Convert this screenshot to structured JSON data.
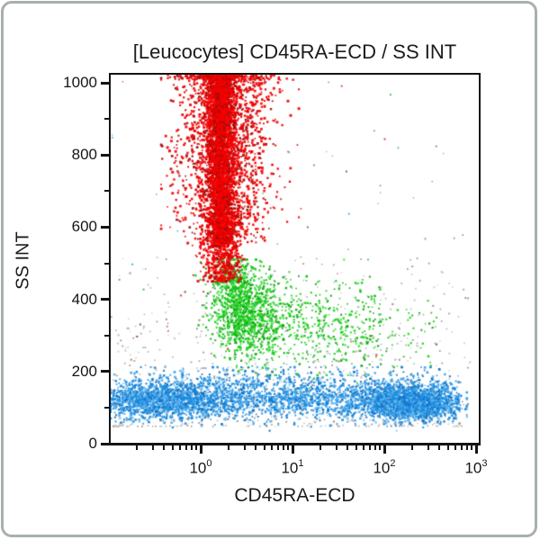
{
  "chart_data": {
    "type": "scatter",
    "title": "[Leucocytes] CD45RA-ECD / SS INT",
    "xlabel": "CD45RA-ECD",
    "ylabel": "SS INT",
    "x_scale": "log",
    "x_log_range": [
      -1,
      3.01
    ],
    "x_tick_base": "10",
    "x_tick_exponents": [
      0,
      1,
      2,
      3
    ],
    "x_minor_decades": [
      -1,
      0,
      1,
      2
    ],
    "y_range": [
      0,
      1022
    ],
    "y_ticks": [
      0,
      200,
      400,
      600,
      800,
      1000
    ],
    "y_minor_ticks": [
      100,
      300,
      500,
      700,
      900
    ],
    "grid": false,
    "legend": false,
    "frame_color": "#141414",
    "background": "#ffffff",
    "populations": [
      {
        "name": "background-debris",
        "color": "#bcc3c7",
        "count": 760,
        "size": [
          1.2,
          2.2
        ],
        "shades": [
          "#bcc3c7",
          "#aeb6ba",
          "#c9ced1",
          "#a08a7e"
        ],
        "x_clip": [
          -1,
          2.94
        ],
        "y_clip": [
          40,
          540
        ],
        "parts": [
          {
            "weight": 0.62,
            "x": {
              "dist": "uniform",
              "min": -1,
              "max": 2.92
            },
            "y": {
              "dist": "uniform",
              "min": 48,
              "max": 330,
              "pow": 2.2
            }
          },
          {
            "weight": 0.38,
            "x": {
              "dist": "uniform",
              "min": -1,
              "max": 2.92
            },
            "y": {
              "dist": "uniform",
              "min": 140,
              "max": 520,
              "pow": 1.6
            }
          }
        ]
      },
      {
        "name": "strays",
        "color": "#888f93",
        "count": 90,
        "size": [
          1.2,
          2.2
        ],
        "shades": [
          "#e03030",
          "#2bb52b",
          "#4aa5df",
          "#9aa1a5",
          "#7c5a4e"
        ],
        "x_clip": [
          -1,
          2.92
        ],
        "y_clip": [
          45,
          1010
        ],
        "parts": [
          {
            "weight": 1,
            "x": {
              "dist": "uniform",
              "min": -1,
              "max": 2.9
            },
            "y": {
              "dist": "uniform",
              "min": 60,
              "max": 1005
            }
          }
        ]
      },
      {
        "name": "green-cluster",
        "color": "#12c912",
        "count": 1800,
        "size": [
          1.5,
          2.6
        ],
        "shades": [
          "#12c912",
          "#15d415",
          "#0da30d",
          "#3fd63f"
        ],
        "x_clip": [
          -0.6,
          2.7
        ],
        "y_clip": [
          190,
          510
        ],
        "parts": [
          {
            "weight": 0.48,
            "x": {
              "dist": "normal",
              "mean": 0.45,
              "sd": 0.18
            },
            "y": {
              "dist": "normal",
              "mean": 368,
              "sd": 60
            }
          },
          {
            "weight": 0.1,
            "x": {
              "dist": "normal",
              "mean": 0.3,
              "sd": 0.11
            },
            "y": {
              "dist": "normal",
              "mean": 462,
              "sd": 32
            }
          },
          {
            "weight": 0.3,
            "x": {
              "dist": "uniform",
              "min": 0.35,
              "max": 1.95,
              "pow": 1.4
            },
            "y": {
              "dist": "normal",
              "mean": 336,
              "sd": 55
            }
          },
          {
            "weight": 0.12,
            "x": {
              "dist": "uniform",
              "min": 0.7,
              "max": 2.55,
              "pow": 1.5
            },
            "y": {
              "dist": "normal",
              "mean": 305,
              "sd": 65
            }
          }
        ]
      },
      {
        "name": "red-cluster",
        "color": "#f50000",
        "count": 6000,
        "size": [
          1.6,
          3.0
        ],
        "shades": [
          "#f50000",
          "#f50000",
          "#f50000",
          "#e60000",
          "#a50b0b"
        ],
        "x_clip": [
          -0.45,
          1.05
        ],
        "y_clip": [
          440,
          1022
        ],
        "parts": [
          {
            "weight": 0.56,
            "x": {
              "dist": "normal",
              "mean": 0.2,
              "sd": 0.075
            },
            "y": {
              "dist": "uniform",
              "min": 555,
              "max": 1058,
              "pow": 0.85
            }
          },
          {
            "weight": 0.32,
            "x": {
              "dist": "normal",
              "mean": 0.23,
              "sd": 0.26
            },
            "y": {
              "dist": "uniform",
              "min": 545,
              "max": 1058,
              "pow": 0.75
            }
          },
          {
            "weight": 0.12,
            "x": {
              "dist": "normal",
              "mean": 0.21,
              "sd": 0.1
            },
            "y": {
              "dist": "uniform",
              "min": 448,
              "max": 640
            }
          }
        ]
      },
      {
        "name": "blue-cluster",
        "color": "#1e8fe0",
        "count": 5200,
        "size": [
          1.5,
          2.8
        ],
        "shades": [
          "#1e8fe0",
          "#1787dd",
          "#3da0e8",
          "#1273c4",
          "#63b6ee"
        ],
        "x_clip": [
          -1,
          2.88
        ],
        "y_clip": [
          36,
          212
        ],
        "parts": [
          {
            "weight": 0.4,
            "x": {
              "dist": "uniform",
              "min": -0.98,
              "max": 2.8
            },
            "y": {
              "dist": "normal",
              "mean": 121,
              "sd": 26
            }
          },
          {
            "weight": 0.17,
            "x": {
              "dist": "normal",
              "mean": -0.4,
              "sd": 0.3
            },
            "y": {
              "dist": "normal",
              "mean": 116,
              "sd": 24
            }
          },
          {
            "weight": 0.29,
            "x": {
              "dist": "normal",
              "mean": 2.25,
              "sd": 0.24
            },
            "y": {
              "dist": "normal",
              "mean": 110,
              "sd": 21
            }
          },
          {
            "weight": 0.14,
            "x": {
              "dist": "uniform",
              "min": -0.9,
              "max": 2.7
            },
            "y": {
              "dist": "normal",
              "mean": 155,
              "sd": 30
            }
          }
        ]
      }
    ]
  }
}
